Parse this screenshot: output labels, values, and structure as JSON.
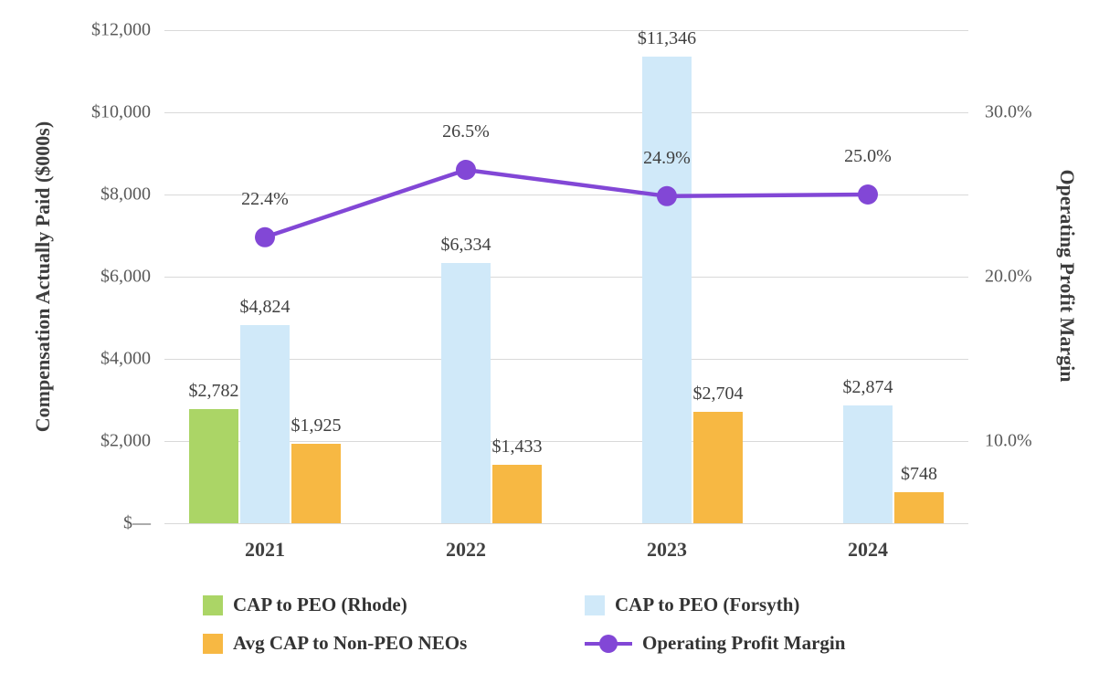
{
  "chart_data": {
    "type": "bar",
    "subtype": "grouped-bars-with-line-overlay",
    "categories": [
      "2021",
      "2022",
      "2023",
      "2024"
    ],
    "series": [
      {
        "name": "CAP to PEO (Rhode)",
        "kind": "bar",
        "color": "#abd566",
        "values": [
          2782,
          null,
          null,
          null
        ],
        "value_labels": [
          "$2,782",
          "",
          "",
          ""
        ]
      },
      {
        "name": "CAP to PEO (Forsyth)",
        "kind": "bar",
        "color": "#d0e9f9",
        "values": [
          4824,
          6334,
          11346,
          2874
        ],
        "value_labels": [
          "$4,824",
          "$6,334",
          "$11,346",
          "$2,874"
        ]
      },
      {
        "name": "Avg CAP to Non-PEO NEOs",
        "kind": "bar",
        "color": "#f7b843",
        "values": [
          1925,
          1433,
          2704,
          748
        ],
        "value_labels": [
          "$1,925",
          "$1,433",
          "$2,704",
          "$748"
        ]
      },
      {
        "name": "Operating Profit Margin",
        "kind": "line",
        "color": "#8247d6",
        "values": [
          22.4,
          26.5,
          24.9,
          25.0
        ],
        "value_labels": [
          "22.4%",
          "26.5%",
          "24.9%",
          "25.0%"
        ]
      }
    ],
    "left_axis": {
      "title": "Compensation Actually Paid ($000s)",
      "tick_values": [
        0,
        2000,
        4000,
        6000,
        8000,
        10000,
        12000
      ],
      "tick_labels": [
        "$—",
        "$2,000",
        "$4,000",
        "$6,000",
        "$8,000",
        "$10,000",
        "$12,000"
      ],
      "min": 0,
      "max": 12000
    },
    "right_axis": {
      "title": "Operating Profit Margin",
      "tick_values": [
        10,
        20,
        30
      ],
      "tick_labels": [
        "10.0%",
        "20.0%",
        "30.0%"
      ],
      "min": 5,
      "max": 35
    },
    "grid": true,
    "legend_position": "bottom"
  }
}
